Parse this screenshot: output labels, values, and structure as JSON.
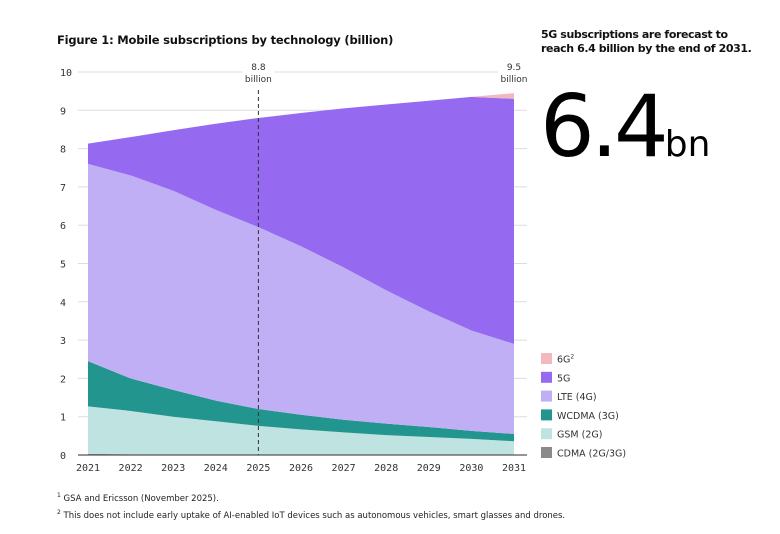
{
  "title": "Figure 1: Mobile subscriptions by technology (billion)",
  "headline": "5G subscriptions are forecast to reach 6.4 billion by the end of 2031.",
  "big_number": {
    "value": "6.4",
    "unit": "bn"
  },
  "footnotes": [
    {
      "mark": "1",
      "text": "GSA and Ericsson (November 2025)."
    },
    {
      "mark": "2",
      "text": "This does not include early uptake of AI-enabled IoT devices such as autonomous vehicles, smart glasses and drones."
    }
  ],
  "chart_data": {
    "type": "area",
    "stacked": true,
    "title": "Figure 1: Mobile subscriptions by technology (billion)",
    "x": [
      2021,
      2022,
      2023,
      2024,
      2025,
      2026,
      2027,
      2028,
      2029,
      2030,
      2031
    ],
    "ylim": [
      0,
      10
    ],
    "yticks": [
      0,
      1,
      2,
      3,
      4,
      5,
      6,
      7,
      8,
      9,
      10
    ],
    "grid": true,
    "legend_placement": "bottom-right",
    "series": [
      {
        "name": "CDMA (2G/3G)",
        "color": "#8a8a8a",
        "values": [
          0.03,
          0.02,
          0,
          0,
          0,
          0,
          0,
          0,
          0,
          0,
          0
        ]
      },
      {
        "name": "GSM (2G)",
        "color": "#bfe3e1",
        "values": [
          1.24,
          1.13,
          1.0,
          0.88,
          0.76,
          0.67,
          0.59,
          0.52,
          0.47,
          0.42,
          0.36
        ]
      },
      {
        "name": "WCDMA (3G)",
        "color": "#23958f",
        "values": [
          1.18,
          0.85,
          0.7,
          0.54,
          0.44,
          0.38,
          0.33,
          0.3,
          0.26,
          0.21,
          0.19
        ]
      },
      {
        "name": "LTE (4G)",
        "color": "#c1aff5",
        "values": [
          5.15,
          5.3,
          5.2,
          4.98,
          4.75,
          4.4,
          3.98,
          3.48,
          3.02,
          2.62,
          2.35
        ]
      },
      {
        "name": "5G",
        "color": "#956af0",
        "values": [
          0.53,
          1.0,
          1.58,
          2.25,
          2.85,
          3.48,
          4.15,
          4.85,
          5.5,
          6.1,
          6.4
        ]
      },
      {
        "name": "6G",
        "name_sup": "2",
        "color": "#f1b9bf",
        "values": [
          0,
          0,
          0,
          0,
          0,
          0,
          0,
          0,
          0,
          0,
          0.15
        ]
      }
    ],
    "annotations": [
      {
        "x": 2025,
        "value": "8.8",
        "label": "billion",
        "dashed_line": true
      },
      {
        "x": 2031,
        "value": "9.5",
        "label": "billion",
        "dashed_line": false
      }
    ]
  }
}
